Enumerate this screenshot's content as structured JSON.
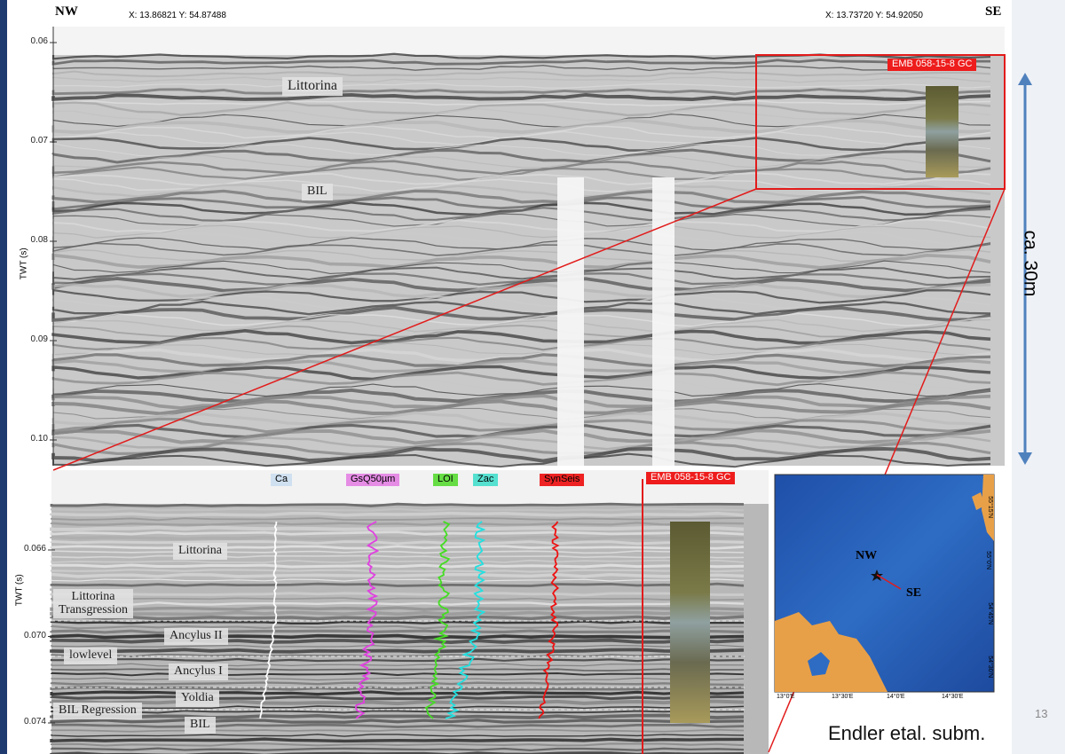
{
  "header": {
    "left_label": "NW",
    "left_coords": "X: 13.86821  Y: 54.87488",
    "right_coords": "X: 13.73720  Y: 54.92050",
    "right_label": "SE"
  },
  "top_panel": {
    "y_axis_title": "TWT (s)",
    "y_ticks": [
      "0.06",
      "0.07",
      "0.08",
      "0.09",
      "0.10"
    ],
    "labels": [
      "Littorina",
      "BIL"
    ],
    "core_label": "EMB 058-15-8 GC"
  },
  "scale_label": "ca. 30m",
  "bottom_panel": {
    "y_axis_title": "TWT (s)",
    "y_ticks": [
      "0.066",
      "0.070",
      "0.074"
    ],
    "curves": [
      "Ca",
      "GsQ50µm",
      "LOI",
      "Zac",
      "SynSeis"
    ],
    "core_label": "EMB 058-15-8 GC",
    "units": [
      "Littorina",
      "Littorina\nTransgression",
      "Ancylus II",
      "lowlevel",
      "Ancylus I",
      "Yoldia",
      "BIL Regression",
      "BIL"
    ]
  },
  "map": {
    "start": "NW",
    "end": "SE",
    "lat_ticks": [
      "55°15'N",
      "55°0'N",
      "54°45'N",
      "54°30'N"
    ],
    "lon_ticks": [
      "13°0'E",
      "13°30'E",
      "14°0'E",
      "14°30'E"
    ]
  },
  "footer": {
    "page_number": "13",
    "citation": "Endler etal. subm."
  }
}
